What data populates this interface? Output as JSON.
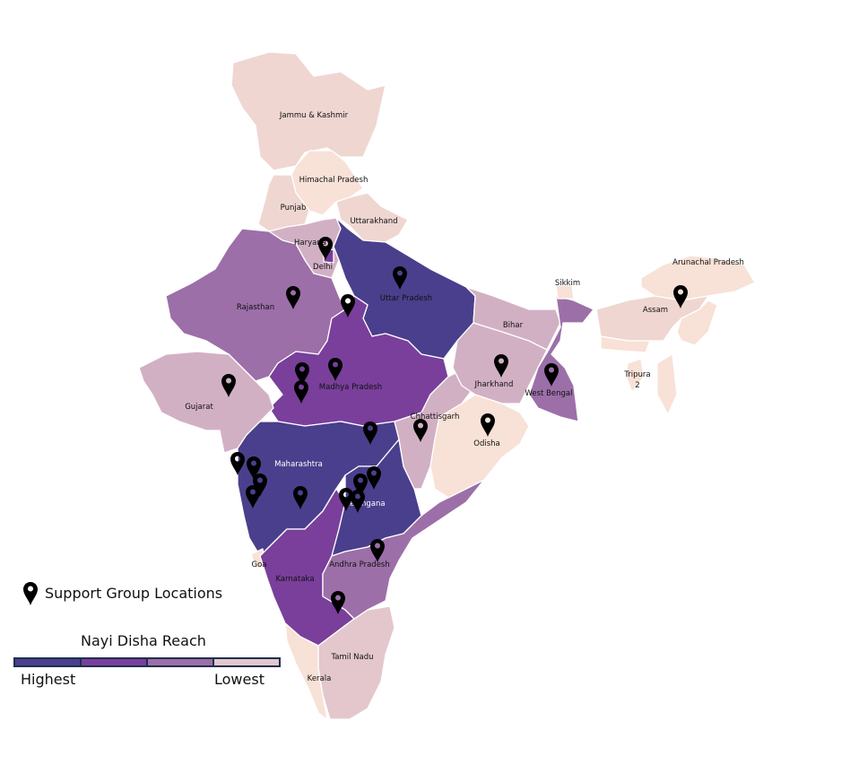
{
  "states": {
    "jk": "Jammu & Kashmir",
    "hp": "Himachal Pradesh",
    "punjab": "Punjab",
    "uk": "Uttarakhand",
    "haryana": "Haryana",
    "delhi": "Delhi",
    "up": "Uttar Pradesh",
    "rajasthan": "Rajasthan",
    "mp": "Madhya Pradesh",
    "gujarat": "Gujarat",
    "maharashtra": "Maharashtra",
    "goa": "Goa",
    "karnataka": "Karnataka",
    "kerala": "Kerala",
    "tn": "Tamil Nadu",
    "telangana": "Telangana",
    "ap": "Andhra Pradesh",
    "chhattisgarh": "Chhattisgarh",
    "odisha": "Odisha",
    "jharkhand": "Jharkhand",
    "bihar": "Bihar",
    "wb": "West Bengal",
    "sikkim": "Sikkim",
    "assam": "Assam",
    "arunachal": "Arunachal Pradesh",
    "tripura": "Tripura",
    "tripura_value": "2"
  },
  "legend": {
    "pins_label": "Support Group Locations",
    "pin_icon": "map-pin-icon",
    "scale_title": "Nayi Disha Reach",
    "high_label": "Highest",
    "low_label": "Lowest",
    "colors": [
      "#4a3f8c",
      "#793f9b",
      "#9c6fa8",
      "#e3c7cd"
    ]
  }
}
